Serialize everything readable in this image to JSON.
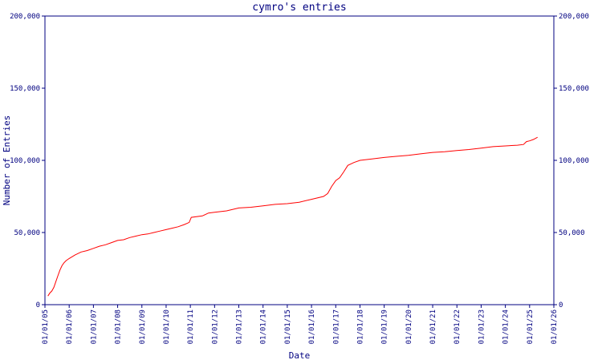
{
  "chart_data": {
    "type": "line",
    "title": "cymro's entries",
    "xlabel": "Date",
    "ylabel": "Number of Entries",
    "x_tick_labels": [
      "01/01/05",
      "01/01/06",
      "01/01/07",
      "01/01/08",
      "01/01/09",
      "01/01/10",
      "01/01/11",
      "01/01/12",
      "01/01/13",
      "01/01/14",
      "01/01/15",
      "01/01/16",
      "01/01/17",
      "01/01/18",
      "01/01/19",
      "01/01/20",
      "01/01/21",
      "01/01/22",
      "01/01/23",
      "01/01/24",
      "01/01/25",
      "01/01/26"
    ],
    "y_ticks": [
      0,
      50000,
      100000,
      150000,
      200000
    ],
    "y_tick_labels": [
      "0",
      "50,000",
      "100,000",
      "150,000",
      "200,000"
    ],
    "xlim": [
      "2005-01-01",
      "2026-01-01"
    ],
    "ylim": [
      0,
      200000
    ],
    "grid": false,
    "colors": {
      "axis": "#000080",
      "text": "#000080",
      "line": "#ff0000"
    },
    "series": [
      {
        "values": [
          {
            "x": "2005-02-15",
            "y": 6000
          },
          {
            "x": "2005-03-15",
            "y": 8000
          },
          {
            "x": "2005-04-15",
            "y": 9500
          },
          {
            "x": "2005-05-15",
            "y": 12000
          },
          {
            "x": "2005-06-15",
            "y": 16000
          },
          {
            "x": "2005-07-15",
            "y": 20000
          },
          {
            "x": "2005-08-15",
            "y": 24000
          },
          {
            "x": "2005-09-15",
            "y": 27000
          },
          {
            "x": "2005-10-15",
            "y": 29000
          },
          {
            "x": "2005-11-15",
            "y": 30500
          },
          {
            "x": "2006-01-01",
            "y": 32000
          },
          {
            "x": "2006-04-01",
            "y": 34500
          },
          {
            "x": "2006-07-01",
            "y": 36500
          },
          {
            "x": "2006-10-01",
            "y": 37500
          },
          {
            "x": "2007-01-01",
            "y": 39000
          },
          {
            "x": "2007-04-01",
            "y": 40500
          },
          {
            "x": "2007-07-01",
            "y": 41500
          },
          {
            "x": "2007-10-01",
            "y": 43000
          },
          {
            "x": "2008-01-01",
            "y": 44500
          },
          {
            "x": "2008-04-01",
            "y": 45000
          },
          {
            "x": "2008-07-01",
            "y": 46500
          },
          {
            "x": "2008-10-01",
            "y": 47500
          },
          {
            "x": "2009-01-01",
            "y": 48500
          },
          {
            "x": "2009-04-01",
            "y": 49000
          },
          {
            "x": "2009-07-01",
            "y": 50000
          },
          {
            "x": "2009-10-01",
            "y": 51000
          },
          {
            "x": "2010-01-01",
            "y": 52000
          },
          {
            "x": "2010-04-01",
            "y": 53000
          },
          {
            "x": "2010-07-01",
            "y": 54000
          },
          {
            "x": "2010-10-01",
            "y": 55500
          },
          {
            "x": "2010-12-15",
            "y": 57000
          },
          {
            "x": "2011-01-15",
            "y": 60500
          },
          {
            "x": "2011-07-01",
            "y": 61500
          },
          {
            "x": "2011-10-01",
            "y": 63500
          },
          {
            "x": "2012-01-01",
            "y": 64000
          },
          {
            "x": "2012-07-01",
            "y": 65000
          },
          {
            "x": "2013-01-01",
            "y": 67000
          },
          {
            "x": "2013-07-01",
            "y": 67500
          },
          {
            "x": "2014-01-01",
            "y": 68500
          },
          {
            "x": "2014-07-01",
            "y": 69500
          },
          {
            "x": "2015-01-01",
            "y": 70000
          },
          {
            "x": "2015-07-01",
            "y": 71000
          },
          {
            "x": "2016-01-01",
            "y": 73000
          },
          {
            "x": "2016-07-01",
            "y": 75000
          },
          {
            "x": "2016-09-01",
            "y": 77000
          },
          {
            "x": "2016-11-01",
            "y": 82000
          },
          {
            "x": "2017-01-01",
            "y": 86000
          },
          {
            "x": "2017-03-01",
            "y": 88000
          },
          {
            "x": "2017-05-01",
            "y": 92000
          },
          {
            "x": "2017-07-01",
            "y": 96500
          },
          {
            "x": "2017-10-01",
            "y": 98500
          },
          {
            "x": "2018-01-01",
            "y": 100000
          },
          {
            "x": "2018-07-01",
            "y": 101000
          },
          {
            "x": "2019-01-01",
            "y": 102000
          },
          {
            "x": "2019-07-01",
            "y": 102800
          },
          {
            "x": "2020-01-01",
            "y": 103500
          },
          {
            "x": "2020-07-01",
            "y": 104500
          },
          {
            "x": "2021-01-01",
            "y": 105500
          },
          {
            "x": "2021-07-01",
            "y": 106000
          },
          {
            "x": "2022-01-01",
            "y": 106800
          },
          {
            "x": "2022-07-01",
            "y": 107500
          },
          {
            "x": "2023-01-01",
            "y": 108500
          },
          {
            "x": "2023-07-01",
            "y": 109500
          },
          {
            "x": "2024-01-01",
            "y": 110000
          },
          {
            "x": "2024-07-01",
            "y": 110500
          },
          {
            "x": "2024-10-01",
            "y": 111000
          },
          {
            "x": "2024-11-15",
            "y": 113000
          },
          {
            "x": "2025-01-01",
            "y": 113500
          },
          {
            "x": "2025-03-01",
            "y": 114500
          },
          {
            "x": "2025-05-01",
            "y": 116000
          }
        ]
      }
    ]
  }
}
